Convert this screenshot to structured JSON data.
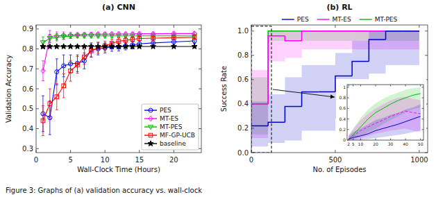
{
  "chart_data": [
    {
      "type": "line",
      "title": "(a) CNN",
      "xlabel": "Wall-Clock Time (Hours)",
      "ylabel": "Validation Accuracy",
      "x": [
        1,
        2,
        3,
        4,
        5,
        6,
        7,
        8,
        9,
        10,
        11,
        12,
        13,
        14,
        15,
        17,
        20,
        23
      ],
      "series": [
        {
          "name": "PES",
          "color": "#0000ff",
          "marker": "circle",
          "values": [
            0.475,
            0.455,
            0.685,
            0.715,
            0.725,
            0.728,
            0.74,
            0.795,
            0.8,
            0.805,
            0.81,
            0.81,
            0.815,
            0.82,
            0.825,
            0.83,
            0.835,
            0.84
          ],
          "error": [
            0.09,
            0.085,
            0.065,
            0.055,
            0.045,
            0.042,
            0.04,
            0.035,
            0.03,
            0.025,
            0.022,
            0.02,
            0.02,
            0.02,
            0.018,
            0.018,
            0.015,
            0.012
          ]
        },
        {
          "name": "MT-ES",
          "color": "#ff00ff",
          "marker": "diamond",
          "values": [
            0.69,
            0.862,
            0.865,
            0.867,
            0.868,
            0.87,
            0.872,
            0.873,
            0.874,
            0.874,
            0.875,
            0.875,
            0.875,
            0.875,
            0.876,
            0.876,
            0.877,
            0.877
          ],
          "error": [
            0.05,
            0.03,
            0.02,
            0.018,
            0.015,
            0.012,
            0.01,
            0.01,
            0.01,
            0.01,
            0.009,
            0.009,
            0.009,
            0.009,
            0.008,
            0.008,
            0.008,
            0.008
          ]
        },
        {
          "name": "MT-PES",
          "color": "#00bb00",
          "marker": "triangle-down",
          "values": [
            0.832,
            0.853,
            0.858,
            0.862,
            0.864,
            0.865,
            0.865,
            0.865,
            0.865,
            0.865,
            0.865,
            0.865,
            0.865,
            0.865,
            0.865,
            0.865,
            0.865,
            0.865
          ],
          "error": [
            0.028,
            0.02,
            0.018,
            0.015,
            0.012,
            0.01,
            0.01,
            0.01,
            0.01,
            0.01,
            0.009,
            0.009,
            0.009,
            0.009,
            0.008,
            0.008,
            0.008,
            0.008
          ]
        },
        {
          "name": "MF-GP-UCB",
          "color": "#ff0000",
          "marker": "square",
          "values": [
            0.44,
            0.525,
            0.56,
            0.615,
            0.69,
            0.72,
            0.76,
            0.79,
            0.806,
            0.815,
            0.828,
            0.838,
            0.843,
            0.848,
            0.852,
            0.854,
            0.856,
            0.858
          ],
          "error": [
            0.075,
            0.075,
            0.065,
            0.06,
            0.052,
            0.042,
            0.038,
            0.032,
            0.028,
            0.024,
            0.02,
            0.018,
            0.015,
            0.013,
            0.012,
            0.01,
            0.01,
            0.01
          ]
        },
        {
          "name": "baseline",
          "color": "#000000",
          "marker": "star",
          "x": [
            1,
            1,
            2,
            3,
            4,
            5,
            6,
            7,
            8,
            9,
            10,
            11,
            12,
            13,
            14,
            15,
            17,
            20,
            23
          ],
          "values": [
            0.812,
            0.812,
            0.812,
            0.812,
            0.812,
            0.812,
            0.812,
            0.812,
            0.812,
            0.812,
            0.812,
            0.812,
            0.812,
            0.812,
            0.812,
            0.812,
            0.812,
            0.812,
            0.812
          ]
        }
      ],
      "xlim": [
        0,
        24
      ],
      "xticks": [
        0,
        5,
        10,
        15,
        20
      ],
      "ylim": [
        0.28,
        0.92
      ],
      "yticks": [
        0.3,
        0.4,
        0.5,
        0.6,
        0.7,
        0.8,
        0.9
      ],
      "legend": "lower right",
      "annotations": [
        {
          "text": "Figure 3: Graphs of (a) validation accuracy vs. wall-clock"
        }
      ]
    },
    {
      "type": "step",
      "title": "(b) RL",
      "xlabel": "No. of Episodes",
      "ylabel": "Success Rate",
      "x": [
        0,
        100,
        200,
        300,
        400,
        500,
        600,
        700,
        800,
        900,
        1000
      ],
      "series": [
        {
          "name": "PES",
          "color": "#0000cc",
          "values": [
            0.22,
            0.25,
            0.38,
            0.5,
            0.5,
            0.63,
            0.75,
            0.93,
            1.0,
            1.0,
            1.0
          ],
          "lower": [
            0.05,
            0.08,
            0.1,
            0.18,
            0.18,
            0.28,
            0.4,
            0.65,
            0.72,
            0.72,
            0.72
          ],
          "upper": [
            0.42,
            0.48,
            0.62,
            0.72,
            0.72,
            0.82,
            0.92,
            1.0,
            1.0,
            1.0,
            1.0
          ]
        },
        {
          "name": "MT-ES",
          "color": "#ff00ff",
          "values": [
            0.4,
            0.96,
            0.92,
            1.0,
            1.0,
            1.0,
            1.0,
            1.0,
            1.0,
            1.0,
            1.0
          ],
          "lower": [
            0.12,
            0.75,
            0.78,
            0.85,
            0.85,
            0.85,
            0.85,
            0.85,
            0.85,
            0.85,
            0.85
          ],
          "upper": [
            0.68,
            1.0,
            1.0,
            1.0,
            1.0,
            1.0,
            1.0,
            1.0,
            1.0,
            1.0,
            1.0
          ]
        },
        {
          "name": "MT-PES",
          "color": "#00bb00",
          "values": [
            0.4,
            1.0,
            1.0,
            1.0,
            1.0,
            1.0,
            1.0,
            1.0,
            1.0,
            1.0,
            1.0
          ],
          "lower": [
            0.15,
            0.92,
            0.92,
            0.92,
            0.92,
            0.92,
            0.92,
            0.92,
            0.92,
            0.92,
            0.92
          ],
          "upper": [
            0.62,
            1.0,
            1.0,
            1.0,
            1.0,
            1.0,
            1.0,
            1.0,
            1.0,
            1.0,
            1.0
          ]
        }
      ],
      "xlim": [
        0,
        1050
      ],
      "xticks": [
        0,
        500,
        1000
      ],
      "ylim": [
        0,
        1.05
      ],
      "yticks": [
        {
          "value": 0,
          "label": "0.0"
        },
        0.2,
        0.4,
        0.6,
        0.8,
        {
          "value": 1.0,
          "label": "1.0"
        }
      ],
      "legend": "top",
      "highlight": {
        "x": [
          0,
          120
        ],
        "y": [
          0,
          1.04
        ]
      }
    },
    {
      "type": "line",
      "x": [
        2,
        5,
        10,
        15,
        20,
        25,
        30,
        35,
        40,
        45,
        50
      ],
      "series": [
        {
          "name": "PES",
          "color": "#0000cc",
          "values": [
            0.02,
            0.05,
            0.08,
            0.12,
            0.18,
            0.22,
            0.26,
            0.3,
            0.35,
            0.4,
            0.45
          ],
          "lower": [
            0.0,
            0.0,
            0.0,
            0.02,
            0.04,
            0.06,
            0.08,
            0.1,
            0.12,
            0.15,
            0.18
          ],
          "upper": [
            0.08,
            0.15,
            0.22,
            0.3,
            0.38,
            0.42,
            0.48,
            0.52,
            0.58,
            0.62,
            0.68
          ]
        },
        {
          "name": "MT-ES",
          "color": "#ff00ff",
          "line_style": "dashed",
          "values": [
            0.02,
            0.08,
            0.18,
            0.25,
            0.32,
            0.38,
            0.45,
            0.5,
            0.55,
            0.52,
            0.5
          ],
          "lower": [
            0.0,
            0.01,
            0.04,
            0.08,
            0.12,
            0.15,
            0.18,
            0.2,
            0.22,
            0.18,
            0.15
          ],
          "upper": [
            0.1,
            0.2,
            0.38,
            0.5,
            0.6,
            0.68,
            0.75,
            0.8,
            0.82,
            0.78,
            0.75
          ]
        },
        {
          "name": "MT-PES",
          "color": "#00bb00",
          "values": [
            0.02,
            0.1,
            0.25,
            0.4,
            0.52,
            0.6,
            0.68,
            0.75,
            0.8,
            0.85,
            0.88
          ],
          "lower": [
            0.0,
            0.02,
            0.08,
            0.15,
            0.22,
            0.3,
            0.38,
            0.45,
            0.52,
            0.58,
            0.62
          ],
          "upper": [
            0.08,
            0.22,
            0.42,
            0.58,
            0.7,
            0.78,
            0.85,
            0.9,
            0.95,
            0.98,
            1.0
          ]
        }
      ],
      "xlim": [
        1,
        52
      ],
      "xticks": [
        2,
        5,
        10,
        20,
        30,
        40,
        50
      ],
      "ylim": [
        0,
        1.05
      ],
      "yticks": [
        0,
        0.2,
        0.4,
        0.6,
        0.8,
        1
      ]
    }
  ]
}
